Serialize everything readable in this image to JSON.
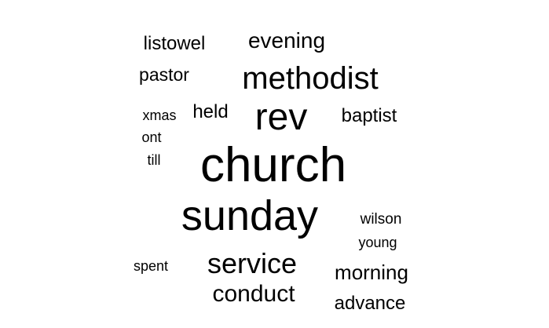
{
  "word_cloud": {
    "words": [
      {
        "text": "church",
        "rank": 1
      },
      {
        "text": "sunday",
        "rank": 2
      },
      {
        "text": "methodist",
        "rank": 3
      },
      {
        "text": "rev",
        "rank": 4
      },
      {
        "text": "service",
        "rank": 5
      },
      {
        "text": "evening",
        "rank": 6
      },
      {
        "text": "conduct",
        "rank": 7
      },
      {
        "text": "morning",
        "rank": 8
      },
      {
        "text": "baptist",
        "rank": 9
      },
      {
        "text": "advance",
        "rank": 10
      },
      {
        "text": "listowel",
        "rank": 11
      },
      {
        "text": "pastor",
        "rank": 12
      },
      {
        "text": "held",
        "rank": 13
      },
      {
        "text": "wilson",
        "rank": 14
      },
      {
        "text": "young",
        "rank": 15
      },
      {
        "text": "spent",
        "rank": 16
      },
      {
        "text": "xmas",
        "rank": 17
      },
      {
        "text": "ont",
        "rank": 18
      },
      {
        "text": "till",
        "rank": 19
      }
    ],
    "text_color": "#000000",
    "background_color": "#ffffff"
  }
}
